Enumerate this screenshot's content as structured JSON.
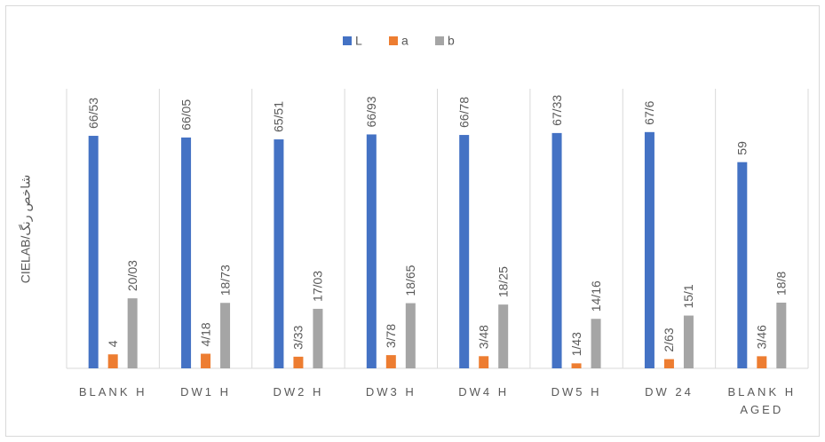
{
  "chart_data": {
    "type": "bar",
    "y_label": "CIELAB/شاخص رنگ",
    "categories": [
      "BLANK H",
      "DW1 H",
      "DW2 H",
      "DW3 H",
      "DW4 H",
      "DW5 H",
      "DW 24",
      "BLANK H AGED"
    ],
    "series": [
      {
        "name": "L",
        "color": "#4472c4",
        "values": [
          66.53,
          66.05,
          65.51,
          66.93,
          66.78,
          67.33,
          67.6,
          59
        ],
        "value_labels": [
          "66/53",
          "66/05",
          "65/51",
          "66/93",
          "66/78",
          "67/33",
          "67/6",
          "59"
        ]
      },
      {
        "name": "a",
        "color": "#ed7d31",
        "values": [
          4,
          4.18,
          3.33,
          3.78,
          3.48,
          1.43,
          2.63,
          3.46
        ],
        "value_labels": [
          "4",
          "4/18",
          "3/33",
          "3/78",
          "3/48",
          "1/43",
          "2/63",
          "3/46"
        ]
      },
      {
        "name": "b",
        "color": "#a5a5a5",
        "values": [
          20.03,
          18.73,
          17.03,
          18.65,
          18.25,
          14.16,
          15.1,
          18.8
        ],
        "value_labels": [
          "20/03",
          "18/73",
          "17/03",
          "18/65",
          "18/25",
          "14/16",
          "15/1",
          "18/8"
        ]
      }
    ],
    "ylim": [
      0,
      80
    ],
    "legend": "top"
  }
}
